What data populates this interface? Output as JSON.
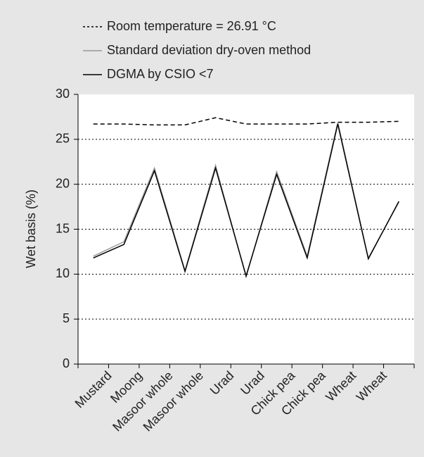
{
  "chart_data": {
    "type": "line",
    "categories": [
      "Mustard",
      "Moong",
      "Masoor whole",
      "Masoor whole",
      "Urad",
      "Urad",
      "Chick pea",
      "Chick pea",
      "Wheat",
      "Wheat",
      null
    ],
    "series": [
      {
        "name": "Room temperature = 26.91 °C",
        "color": "#000000",
        "dash": "dashed",
        "values": [
          26.7,
          26.7,
          26.6,
          26.6,
          27.4,
          26.7,
          26.7,
          26.7,
          26.9,
          26.9,
          27.0
        ]
      },
      {
        "name": "Standard deviation dry-oven method",
        "color": "#999999",
        "dash": "solid",
        "values": [
          12.0,
          13.6,
          21.8,
          10.4,
          22.1,
          9.7,
          21.4,
          12.0,
          26.9,
          11.8,
          18.0
        ]
      },
      {
        "name": "DGMA by CSIO <7",
        "color": "#000000",
        "dash": "solid",
        "values": [
          11.8,
          13.3,
          21.5,
          10.3,
          21.8,
          9.8,
          21.1,
          11.8,
          26.7,
          11.7,
          18.1
        ]
      }
    ],
    "y_label": "Wet basis (%)",
    "ylim": [
      0,
      30
    ],
    "yticks": [
      0,
      5,
      10,
      15,
      20,
      25,
      30
    ],
    "grid": true
  }
}
